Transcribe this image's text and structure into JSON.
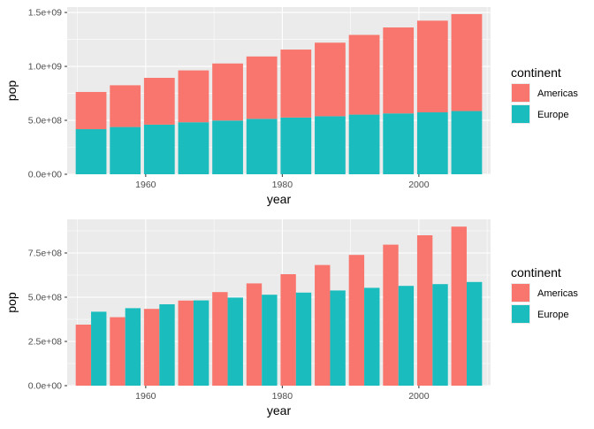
{
  "colors": {
    "americas": "#F8766D",
    "europe": "#1ABCBE",
    "panel_bg": "#EBEBEB",
    "grid": "#FFFFFF",
    "axis_text": "#4D4D4D",
    "title_text": "#000000"
  },
  "chart_data": [
    {
      "type": "bar",
      "stacking": "stacked",
      "xlabel": "year",
      "ylabel": "pop",
      "x": [
        1952,
        1957,
        1962,
        1967,
        1972,
        1977,
        1982,
        1987,
        1992,
        1997,
        2002,
        2007
      ],
      "xlim": [
        1948.5,
        2010.5
      ],
      "xticks": [
        1960,
        1980,
        2000
      ],
      "xtick_labels": [
        "1960",
        "1980",
        "2000"
      ],
      "ylim": [
        0,
        1550000000
      ],
      "yticks": [
        0,
        500000000,
        1000000000,
        1500000000
      ],
      "ytick_labels": [
        "0.0e+00",
        "5.0e+08",
        "1.0e+09",
        "1.5e+09"
      ],
      "grid": true,
      "legend": {
        "title": "continent",
        "position": "right"
      },
      "series": [
        {
          "name": "Europe",
          "color_key": "europe",
          "values": [
            418000000,
            438000000,
            460000000,
            482000000,
            498000000,
            514000000,
            526000000,
            538000000,
            553000000,
            564000000,
            574000000,
            586000000
          ]
        },
        {
          "name": "Americas",
          "color_key": "americas",
          "values": [
            345000000,
            387000000,
            434000000,
            481000000,
            529000000,
            578000000,
            630000000,
            682000000,
            739000000,
            797000000,
            850000000,
            899000000
          ]
        }
      ]
    },
    {
      "type": "bar",
      "stacking": "dodge",
      "xlabel": "year",
      "ylabel": "pop",
      "x": [
        1952,
        1957,
        1962,
        1967,
        1972,
        1977,
        1982,
        1987,
        1992,
        1997,
        2002,
        2007
      ],
      "xlim": [
        1948.5,
        2010.5
      ],
      "xticks": [
        1960,
        1980,
        2000
      ],
      "xtick_labels": [
        "1960",
        "1980",
        "2000"
      ],
      "ylim": [
        0,
        940000000
      ],
      "yticks": [
        0,
        250000000,
        500000000,
        750000000
      ],
      "ytick_labels": [
        "0.0e+00",
        "2.5e+08",
        "5.0e+08",
        "7.5e+08"
      ],
      "grid": true,
      "legend": {
        "title": "continent",
        "position": "right"
      },
      "series": [
        {
          "name": "Americas",
          "color_key": "americas",
          "values": [
            345000000,
            387000000,
            434000000,
            481000000,
            529000000,
            578000000,
            630000000,
            682000000,
            739000000,
            797000000,
            850000000,
            899000000
          ]
        },
        {
          "name": "Europe",
          "color_key": "europe",
          "values": [
            418000000,
            438000000,
            460000000,
            482000000,
            498000000,
            514000000,
            526000000,
            538000000,
            553000000,
            564000000,
            574000000,
            586000000
          ]
        }
      ]
    }
  ]
}
